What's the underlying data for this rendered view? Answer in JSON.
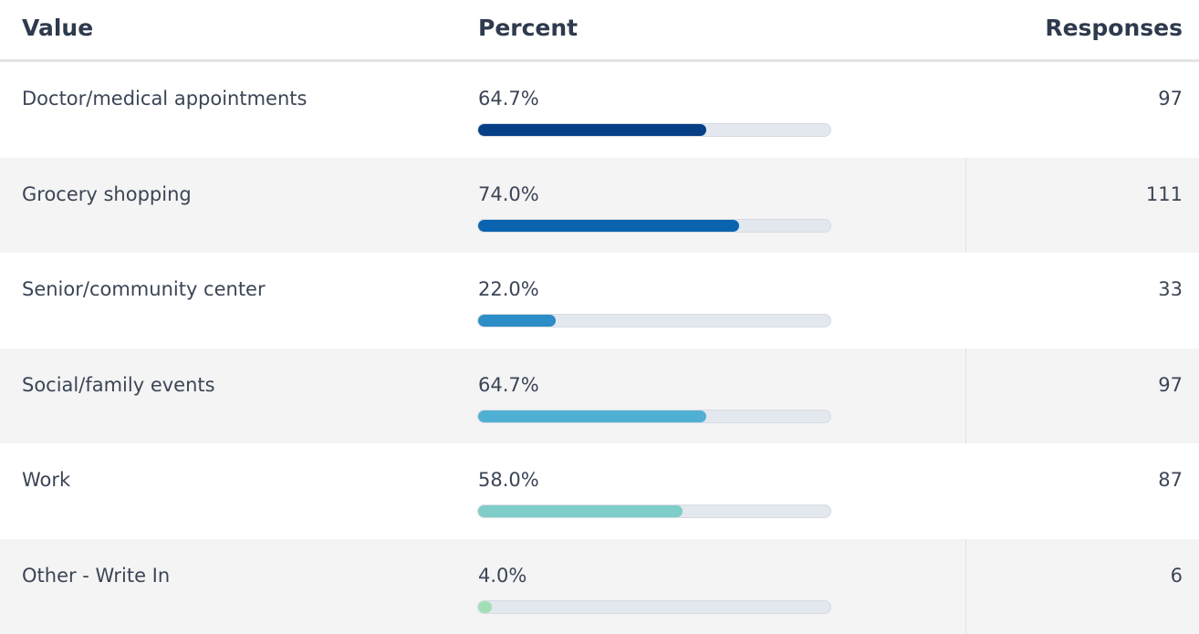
{
  "table": {
    "header": [
      "Value",
      "Percent",
      "Responses"
    ],
    "percent_range": [
      0,
      100
    ],
    "rows": [
      {
        "value": "Doctor/medical appointments",
        "percent": 64.7,
        "percent_label": "64.7%",
        "responses": 97,
        "color": "#063f86"
      },
      {
        "value": "Grocery shopping",
        "percent": 74.0,
        "percent_label": "74.0%",
        "responses": 111,
        "color": "#0a63ae"
      },
      {
        "value": "Senior/community center",
        "percent": 22.0,
        "percent_label": "22.0%",
        "responses": 33,
        "color": "#2d8dc6"
      },
      {
        "value": "Social/family events",
        "percent": 64.7,
        "percent_label": "64.7%",
        "responses": 97,
        "color": "#50b0d3"
      },
      {
        "value": "Work",
        "percent": 58.0,
        "percent_label": "58.0%",
        "responses": 87,
        "color": "#7ecdc8"
      },
      {
        "value": "Other - Write In",
        "percent": 4.0,
        "percent_label": "4.0%",
        "responses": 6,
        "color": "#a3dfb6"
      }
    ]
  }
}
